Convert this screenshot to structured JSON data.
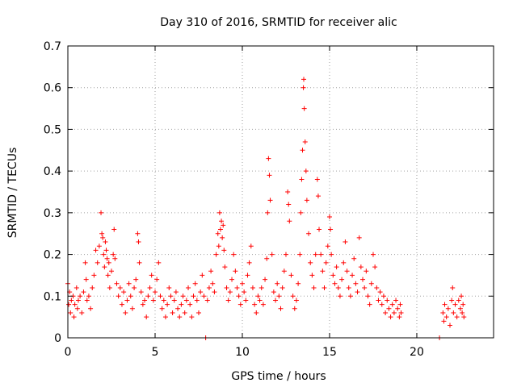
{
  "chart_data": {
    "type": "scatter",
    "title": "Day 310 of 2016, SRMTID for receiver alic",
    "xlabel": "GPS time / hours",
    "ylabel": "SRMTID / TECUs",
    "xlim": [
      0,
      24.4
    ],
    "ylim": [
      0,
      0.7
    ],
    "grid": true,
    "marker": "+",
    "series_color": "#ff0000",
    "x_ticks": [
      {
        "value": 0,
        "label": "0"
      },
      {
        "value": 5,
        "label": "5"
      },
      {
        "value": 10,
        "label": "10"
      },
      {
        "value": 15,
        "label": "15"
      },
      {
        "value": 20,
        "label": "20"
      }
    ],
    "y_ticks": [
      {
        "value": 0,
        "label": "0"
      },
      {
        "value": 0.1,
        "label": "0.1"
      },
      {
        "value": 0.2,
        "label": "0.2"
      },
      {
        "value": 0.3,
        "label": "0.3"
      },
      {
        "value": 0.4,
        "label": "0.4"
      },
      {
        "value": 0.5,
        "label": "0.5"
      },
      {
        "value": 0.6,
        "label": "0.6"
      },
      {
        "value": 0.7,
        "label": "0.7"
      }
    ],
    "series": [
      {
        "name": "SRMTID",
        "points": [
          [
            0.0,
            0.13
          ],
          [
            0.05,
            0.08
          ],
          [
            0.1,
            0.11
          ],
          [
            0.15,
            0.06
          ],
          [
            0.2,
            0.09
          ],
          [
            0.3,
            0.1
          ],
          [
            0.35,
            0.05
          ],
          [
            0.4,
            0.08
          ],
          [
            0.5,
            0.12
          ],
          [
            0.55,
            0.07
          ],
          [
            0.6,
            0.09
          ],
          [
            0.7,
            0.1
          ],
          [
            0.8,
            0.06
          ],
          [
            0.9,
            0.11
          ],
          [
            1.0,
            0.18
          ],
          [
            1.05,
            0.14
          ],
          [
            1.1,
            0.09
          ],
          [
            1.2,
            0.1
          ],
          [
            1.3,
            0.07
          ],
          [
            1.4,
            0.12
          ],
          [
            1.5,
            0.15
          ],
          [
            1.6,
            0.21
          ],
          [
            1.7,
            0.18
          ],
          [
            1.8,
            0.22
          ],
          [
            1.9,
            0.3
          ],
          [
            1.95,
            0.25
          ],
          [
            2.0,
            0.24
          ],
          [
            2.05,
            0.2
          ],
          [
            2.1,
            0.17
          ],
          [
            2.15,
            0.23
          ],
          [
            2.2,
            0.21
          ],
          [
            2.25,
            0.19
          ],
          [
            2.3,
            0.15
          ],
          [
            2.35,
            0.18
          ],
          [
            2.4,
            0.12
          ],
          [
            2.5,
            0.16
          ],
          [
            2.6,
            0.2
          ],
          [
            2.65,
            0.26
          ],
          [
            2.7,
            0.19
          ],
          [
            2.8,
            0.13
          ],
          [
            2.9,
            0.1
          ],
          [
            3.0,
            0.12
          ],
          [
            3.1,
            0.08
          ],
          [
            3.2,
            0.11
          ],
          [
            3.3,
            0.06
          ],
          [
            3.4,
            0.09
          ],
          [
            3.5,
            0.13
          ],
          [
            3.6,
            0.1
          ],
          [
            3.7,
            0.07
          ],
          [
            3.8,
            0.12
          ],
          [
            3.9,
            0.14
          ],
          [
            4.0,
            0.25
          ],
          [
            4.05,
            0.23
          ],
          [
            4.1,
            0.18
          ],
          [
            4.2,
            0.11
          ],
          [
            4.3,
            0.08
          ],
          [
            4.4,
            0.09
          ],
          [
            4.5,
            0.05
          ],
          [
            4.6,
            0.1
          ],
          [
            4.7,
            0.12
          ],
          [
            4.8,
            0.15
          ],
          [
            4.9,
            0.09
          ],
          [
            5.0,
            0.11
          ],
          [
            5.1,
            0.14
          ],
          [
            5.2,
            0.18
          ],
          [
            5.3,
            0.1
          ],
          [
            5.4,
            0.07
          ],
          [
            5.5,
            0.09
          ],
          [
            5.6,
            0.05
          ],
          [
            5.7,
            0.08
          ],
          [
            5.8,
            0.12
          ],
          [
            5.9,
            0.1
          ],
          [
            6.0,
            0.06
          ],
          [
            6.1,
            0.09
          ],
          [
            6.2,
            0.11
          ],
          [
            6.3,
            0.07
          ],
          [
            6.4,
            0.05
          ],
          [
            6.5,
            0.08
          ],
          [
            6.6,
            0.1
          ],
          [
            6.7,
            0.06
          ],
          [
            6.8,
            0.09
          ],
          [
            6.9,
            0.12
          ],
          [
            7.0,
            0.08
          ],
          [
            7.1,
            0.05
          ],
          [
            7.2,
            0.1
          ],
          [
            7.3,
            0.13
          ],
          [
            7.4,
            0.09
          ],
          [
            7.5,
            0.06
          ],
          [
            7.6,
            0.11
          ],
          [
            7.7,
            0.15
          ],
          [
            7.8,
            0.1
          ],
          [
            7.9,
            0.0
          ],
          [
            8.0,
            0.09
          ],
          [
            8.1,
            0.12
          ],
          [
            8.2,
            0.16
          ],
          [
            8.3,
            0.13
          ],
          [
            8.4,
            0.11
          ],
          [
            8.5,
            0.2
          ],
          [
            8.6,
            0.25
          ],
          [
            8.65,
            0.22
          ],
          [
            8.7,
            0.3
          ],
          [
            8.75,
            0.26
          ],
          [
            8.8,
            0.28
          ],
          [
            8.85,
            0.24
          ],
          [
            8.9,
            0.27
          ],
          [
            8.95,
            0.21
          ],
          [
            9.0,
            0.17
          ],
          [
            9.1,
            0.12
          ],
          [
            9.2,
            0.09
          ],
          [
            9.3,
            0.11
          ],
          [
            9.4,
            0.14
          ],
          [
            9.5,
            0.2
          ],
          [
            9.6,
            0.16
          ],
          [
            9.7,
            0.12
          ],
          [
            9.8,
            0.1
          ],
          [
            9.9,
            0.08
          ],
          [
            10.0,
            0.13
          ],
          [
            10.1,
            0.11
          ],
          [
            10.2,
            0.09
          ],
          [
            10.3,
            0.15
          ],
          [
            10.4,
            0.18
          ],
          [
            10.5,
            0.22
          ],
          [
            10.6,
            0.12
          ],
          [
            10.7,
            0.08
          ],
          [
            10.8,
            0.06
          ],
          [
            10.9,
            0.1
          ],
          [
            11.0,
            0.09
          ],
          [
            11.1,
            0.12
          ],
          [
            11.2,
            0.08
          ],
          [
            11.3,
            0.14
          ],
          [
            11.4,
            0.19
          ],
          [
            11.45,
            0.3
          ],
          [
            11.5,
            0.43
          ],
          [
            11.55,
            0.39
          ],
          [
            11.6,
            0.33
          ],
          [
            11.7,
            0.2
          ],
          [
            11.8,
            0.11
          ],
          [
            11.9,
            0.09
          ],
          [
            12.0,
            0.13
          ],
          [
            12.1,
            0.1
          ],
          [
            12.2,
            0.07
          ],
          [
            12.3,
            0.12
          ],
          [
            12.4,
            0.16
          ],
          [
            12.5,
            0.2
          ],
          [
            12.6,
            0.35
          ],
          [
            12.65,
            0.32
          ],
          [
            12.7,
            0.28
          ],
          [
            12.8,
            0.15
          ],
          [
            12.9,
            0.1
          ],
          [
            13.0,
            0.07
          ],
          [
            13.1,
            0.09
          ],
          [
            13.2,
            0.13
          ],
          [
            13.3,
            0.2
          ],
          [
            13.35,
            0.3
          ],
          [
            13.4,
            0.38
          ],
          [
            13.45,
            0.45
          ],
          [
            13.5,
            0.6
          ],
          [
            13.52,
            0.62
          ],
          [
            13.55,
            0.55
          ],
          [
            13.6,
            0.47
          ],
          [
            13.65,
            0.4
          ],
          [
            13.7,
            0.33
          ],
          [
            13.8,
            0.25
          ],
          [
            13.9,
            0.18
          ],
          [
            14.0,
            0.15
          ],
          [
            14.1,
            0.12
          ],
          [
            14.2,
            0.2
          ],
          [
            14.3,
            0.38
          ],
          [
            14.35,
            0.34
          ],
          [
            14.4,
            0.26
          ],
          [
            14.5,
            0.2
          ],
          [
            14.6,
            0.16
          ],
          [
            14.7,
            0.12
          ],
          [
            14.8,
            0.18
          ],
          [
            14.9,
            0.22
          ],
          [
            15.0,
            0.29
          ],
          [
            15.05,
            0.26
          ],
          [
            15.1,
            0.2
          ],
          [
            15.2,
            0.15
          ],
          [
            15.3,
            0.13
          ],
          [
            15.4,
            0.17
          ],
          [
            15.5,
            0.12
          ],
          [
            15.6,
            0.1
          ],
          [
            15.7,
            0.14
          ],
          [
            15.8,
            0.18
          ],
          [
            15.9,
            0.23
          ],
          [
            16.0,
            0.16
          ],
          [
            16.1,
            0.12
          ],
          [
            16.2,
            0.1
          ],
          [
            16.3,
            0.15
          ],
          [
            16.4,
            0.19
          ],
          [
            16.5,
            0.13
          ],
          [
            16.6,
            0.11
          ],
          [
            16.7,
            0.24
          ],
          [
            16.8,
            0.17
          ],
          [
            16.9,
            0.14
          ],
          [
            17.0,
            0.12
          ],
          [
            17.1,
            0.16
          ],
          [
            17.2,
            0.1
          ],
          [
            17.3,
            0.08
          ],
          [
            17.4,
            0.13
          ],
          [
            17.5,
            0.2
          ],
          [
            17.6,
            0.17
          ],
          [
            17.7,
            0.12
          ],
          [
            17.8,
            0.09
          ],
          [
            17.9,
            0.11
          ],
          [
            18.0,
            0.08
          ],
          [
            18.1,
            0.1
          ],
          [
            18.2,
            0.06
          ],
          [
            18.3,
            0.09
          ],
          [
            18.4,
            0.07
          ],
          [
            18.5,
            0.05
          ],
          [
            18.6,
            0.08
          ],
          [
            18.7,
            0.06
          ],
          [
            18.8,
            0.09
          ],
          [
            18.9,
            0.07
          ],
          [
            19.0,
            0.05
          ],
          [
            19.05,
            0.08
          ],
          [
            19.1,
            0.06
          ],
          [
            21.3,
            0.0
          ],
          [
            21.5,
            0.06
          ],
          [
            21.55,
            0.04
          ],
          [
            21.6,
            0.08
          ],
          [
            21.7,
            0.05
          ],
          [
            21.8,
            0.07
          ],
          [
            21.9,
            0.03
          ],
          [
            22.0,
            0.09
          ],
          [
            22.05,
            0.12
          ],
          [
            22.1,
            0.06
          ],
          [
            22.2,
            0.08
          ],
          [
            22.3,
            0.05
          ],
          [
            22.4,
            0.09
          ],
          [
            22.5,
            0.07
          ],
          [
            22.55,
            0.1
          ],
          [
            22.6,
            0.06
          ],
          [
            22.65,
            0.08
          ],
          [
            22.7,
            0.05
          ]
        ]
      }
    ]
  }
}
